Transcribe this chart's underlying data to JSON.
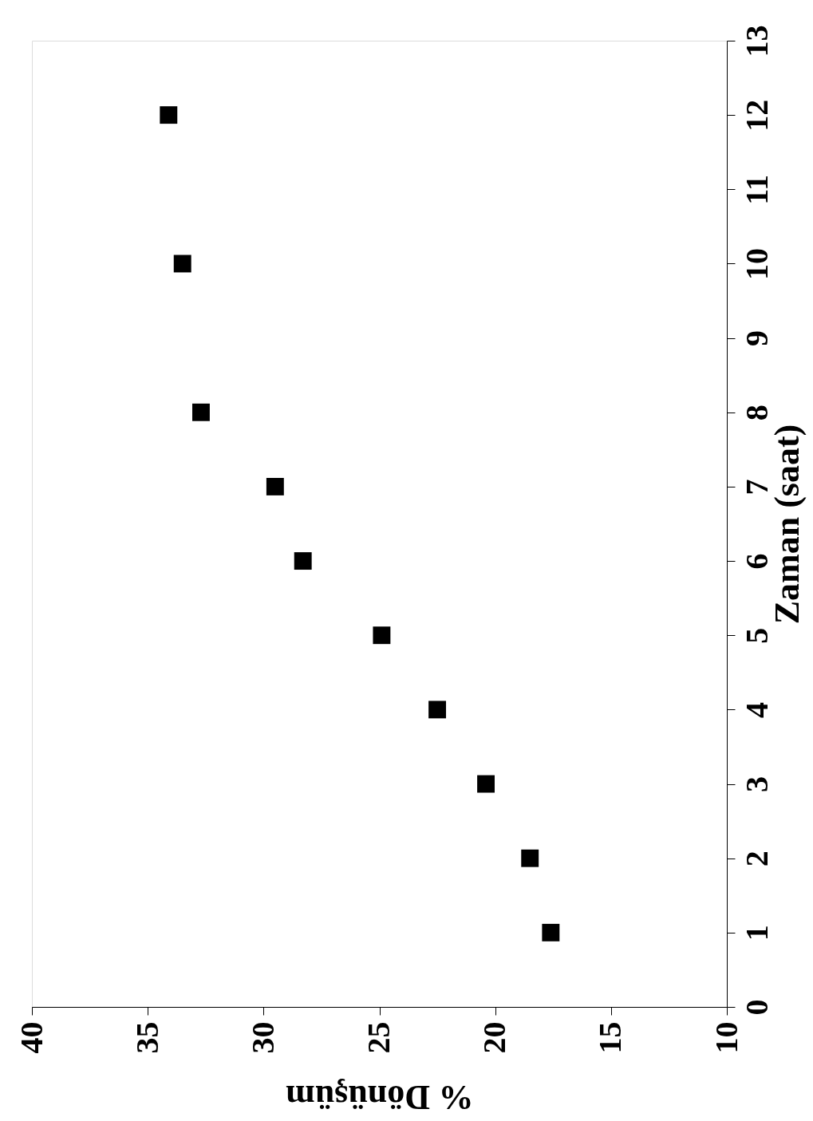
{
  "chart_data": {
    "type": "scatter",
    "xlabel": "% Dönüşüm",
    "ylabel": "Zaman (saat)",
    "x": [
      17.6,
      18.5,
      20.4,
      22.5,
      24.9,
      28.3,
      29.5,
      32.7,
      33.5,
      34.1
    ],
    "series": [
      {
        "color": "#000000",
        "values": [
          1,
          2,
          3,
          4,
          5,
          6,
          7,
          8,
          10,
          12
        ]
      }
    ],
    "xlim": [
      40,
      10
    ],
    "xticks": [
      40,
      35,
      30,
      25,
      20,
      15,
      10
    ],
    "ylim": [
      0,
      13
    ],
    "yticks": [
      0,
      1,
      2,
      3,
      4,
      5,
      6,
      7,
      8,
      9,
      10,
      11,
      12,
      13
    ],
    "marker": "square",
    "grid": false
  }
}
